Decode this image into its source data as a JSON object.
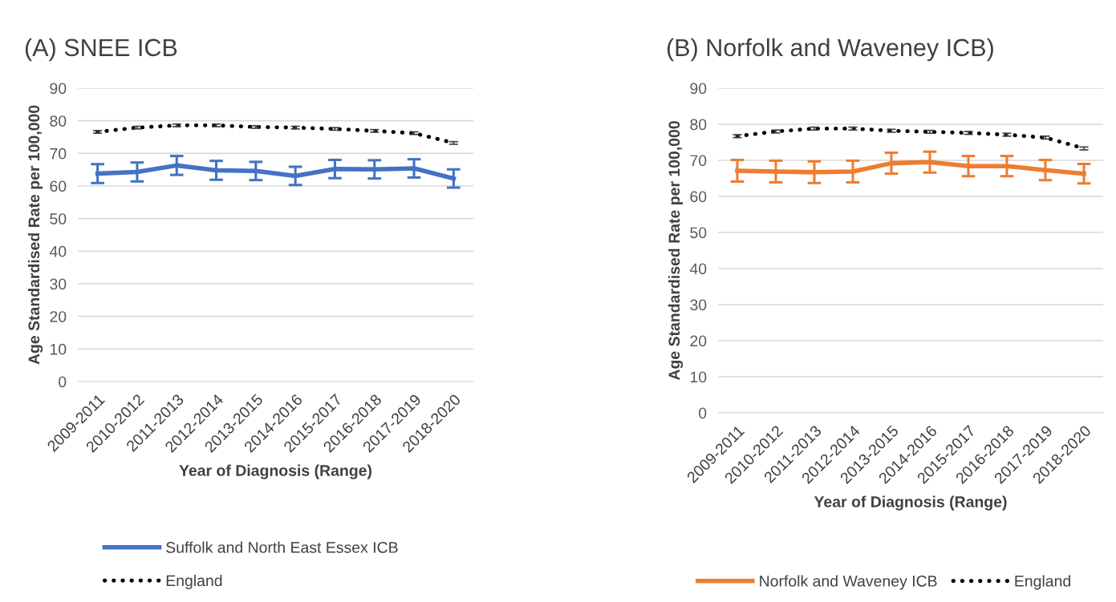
{
  "chart_data": [
    {
      "type": "line",
      "title": "(A) SNEE ICB",
      "xlabel": "Year of Diagnosis (Range)",
      "ylabel": "Age Standardised Rate per 100,000",
      "categories": [
        "2009-2011",
        "2010-2012",
        "2011-2013",
        "2012-2014",
        "2013-2015",
        "2014-2016",
        "2015-2017",
        "2016-2018",
        "2017-2019",
        "2018-2020"
      ],
      "series": [
        {
          "name": "Suffolk and North East Essex ICB",
          "color": "#4472c4",
          "line_style": "solid",
          "values": [
            63.8,
            64.3,
            66.3,
            64.8,
            64.6,
            63.1,
            65.2,
            65.1,
            65.4,
            62.3
          ],
          "errors": [
            2.9,
            2.9,
            2.9,
            2.9,
            2.8,
            2.8,
            2.8,
            2.8,
            2.8,
            2.8
          ]
        },
        {
          "name": "England",
          "color": "#000000",
          "line_style": "dotted",
          "values": [
            76.6,
            77.9,
            78.6,
            78.6,
            78.1,
            77.9,
            77.5,
            76.9,
            76.2,
            73.2
          ],
          "errors": [
            0.4,
            0.4,
            0.4,
            0.4,
            0.4,
            0.4,
            0.4,
            0.4,
            0.4,
            0.4
          ]
        }
      ],
      "ylim": [
        0,
        90
      ],
      "yticks": [
        0,
        10,
        20,
        30,
        40,
        50,
        60,
        70,
        80,
        90
      ],
      "grid": "y",
      "legend": "bottom",
      "marker": "none"
    },
    {
      "type": "line",
      "title": "(B) Norfolk and Waveney ICB)",
      "xlabel": "Year of Diagnosis (Range)",
      "ylabel": "Age Standardised Rate per 100,000",
      "categories": [
        "2009-2011",
        "2010-2012",
        "2011-2013",
        "2012-2014",
        "2013-2015",
        "2014-2016",
        "2015-2017",
        "2016-2018",
        "2017-2019",
        "2018-2020"
      ],
      "series": [
        {
          "name": "Norfolk and Waveney ICB",
          "color": "#ed7d31",
          "line_style": "solid",
          "values": [
            67.1,
            66.9,
            66.7,
            66.9,
            69.2,
            69.5,
            68.4,
            68.4,
            67.3,
            66.3
          ],
          "errors": [
            3.0,
            3.0,
            3.0,
            3.0,
            2.9,
            2.9,
            2.8,
            2.8,
            2.8,
            2.7
          ]
        },
        {
          "name": "England",
          "color": "#000000",
          "line_style": "dotted",
          "values": [
            76.7,
            78.0,
            78.8,
            78.8,
            78.2,
            77.9,
            77.6,
            77.1,
            76.3,
            73.3
          ],
          "errors": [
            0.4,
            0.4,
            0.4,
            0.4,
            0.4,
            0.4,
            0.4,
            0.4,
            0.4,
            0.4
          ]
        }
      ],
      "ylim": [
        0,
        90
      ],
      "yticks": [
        0,
        10,
        20,
        30,
        40,
        50,
        60,
        70,
        80,
        90
      ],
      "grid": "y",
      "legend": "bottom",
      "marker": "none"
    }
  ]
}
